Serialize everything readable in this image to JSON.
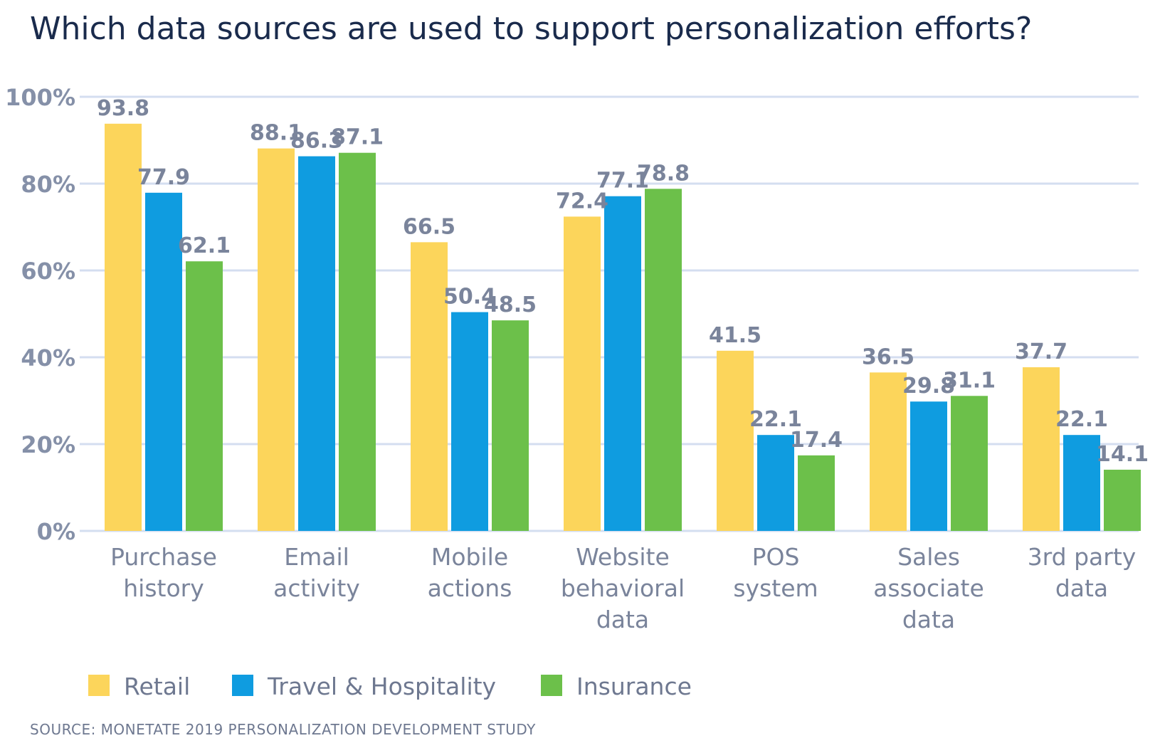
{
  "chart_data": {
    "type": "bar",
    "title": "Which data sources are used to support personalization efforts?",
    "categories": [
      [
        "Purchase",
        "history"
      ],
      [
        "Email",
        "activity"
      ],
      [
        "Mobile",
        "actions"
      ],
      [
        "Website",
        "behavioral",
        "data"
      ],
      [
        "POS",
        "system"
      ],
      [
        "Sales",
        "associate",
        "data"
      ],
      [
        "3rd party",
        "data"
      ]
    ],
    "series": [
      {
        "name": "Retail",
        "color": "#fcd55b",
        "values": [
          93.8,
          88.1,
          66.5,
          72.4,
          41.5,
          36.5,
          37.7
        ],
        "labels": [
          "93.8",
          "88.1",
          "66.5",
          "72.4",
          "41.5",
          "36.5",
          "37.7"
        ]
      },
      {
        "name": "Travel & Hospitality",
        "color": "#0f9ce0",
        "values": [
          77.9,
          86.3,
          50.4,
          77.1,
          22.1,
          29.8,
          22.1
        ],
        "labels": [
          "77.9",
          "86.3",
          "50.4",
          "77.1",
          "22.1",
          "29.8",
          "22.1"
        ]
      },
      {
        "name": "Insurance",
        "color": "#6cc04a",
        "values": [
          62.1,
          87.1,
          48.5,
          78.8,
          17.4,
          31.1,
          14.1
        ],
        "labels": [
          "62.1",
          "87.1",
          "48.5",
          "78.8",
          "17.4",
          "31.1",
          "14.1"
        ]
      }
    ],
    "yticks": [
      0,
      20,
      40,
      60,
      80,
      100
    ],
    "ytick_labels": [
      "0%",
      "20%",
      "40%",
      "60%",
      "80%",
      "100%"
    ],
    "ylim": [
      0,
      100
    ],
    "grid": true,
    "legend_position": "bottom-left"
  },
  "source": "SOURCE: MONETATE 2019 PERSONALIZATION DEVELOPMENT STUDY"
}
